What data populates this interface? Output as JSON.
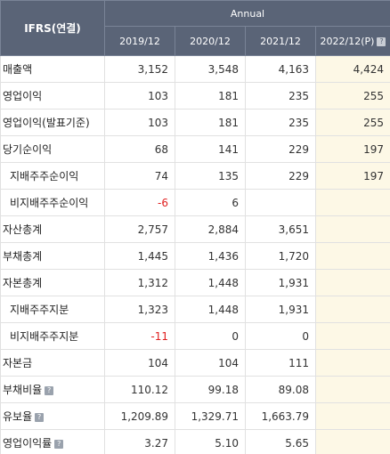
{
  "header": {
    "label": "IFRS(연결)",
    "group": "Annual",
    "years": [
      "2019/12",
      "2020/12",
      "2021/12",
      "2022/12(P)"
    ]
  },
  "help_glyph": "?",
  "rows": [
    {
      "label": "매출액",
      "sub": false,
      "help": false,
      "values": [
        "3,152",
        "3,548",
        "4,163",
        "4,424"
      ]
    },
    {
      "label": "영업이익",
      "sub": false,
      "help": false,
      "values": [
        "103",
        "181",
        "235",
        "255"
      ]
    },
    {
      "label": "영업이익(발표기준)",
      "sub": false,
      "help": false,
      "values": [
        "103",
        "181",
        "235",
        "255"
      ]
    },
    {
      "label": "당기순이익",
      "sub": false,
      "help": false,
      "values": [
        "68",
        "141",
        "229",
        "197"
      ]
    },
    {
      "label": "지배주주순이익",
      "sub": true,
      "help": false,
      "values": [
        "74",
        "135",
        "229",
        "197"
      ]
    },
    {
      "label": "비지배주주순이익",
      "sub": true,
      "help": false,
      "values": [
        "-6",
        "6",
        "",
        ""
      ],
      "negative": [
        true,
        false,
        false,
        false
      ]
    },
    {
      "label": "자산총계",
      "sub": false,
      "help": false,
      "values": [
        "2,757",
        "2,884",
        "3,651",
        ""
      ]
    },
    {
      "label": "부채총계",
      "sub": false,
      "help": false,
      "values": [
        "1,445",
        "1,436",
        "1,720",
        ""
      ]
    },
    {
      "label": "자본총계",
      "sub": false,
      "help": false,
      "values": [
        "1,312",
        "1,448",
        "1,931",
        ""
      ]
    },
    {
      "label": "지배주주지분",
      "sub": true,
      "help": false,
      "values": [
        "1,323",
        "1,448",
        "1,931",
        ""
      ]
    },
    {
      "label": "비지배주주지분",
      "sub": true,
      "help": false,
      "values": [
        "-11",
        "0",
        "0",
        ""
      ],
      "negative": [
        true,
        false,
        false,
        false
      ]
    },
    {
      "label": "자본금",
      "sub": false,
      "help": false,
      "values": [
        "104",
        "104",
        "111",
        ""
      ]
    },
    {
      "label": "부채비율",
      "sub": false,
      "help": true,
      "values": [
        "110.12",
        "99.18",
        "89.08",
        ""
      ]
    },
    {
      "label": "유보율",
      "sub": false,
      "help": true,
      "values": [
        "1,209.89",
        "1,329.71",
        "1,663.79",
        ""
      ]
    },
    {
      "label": "영업이익률",
      "sub": false,
      "help": true,
      "values": [
        "3.27",
        "5.10",
        "5.65",
        ""
      ]
    }
  ],
  "colors": {
    "header_bg": "#5a6477",
    "estimate_bg": "#fdf8e6",
    "negative": "#e02020"
  }
}
